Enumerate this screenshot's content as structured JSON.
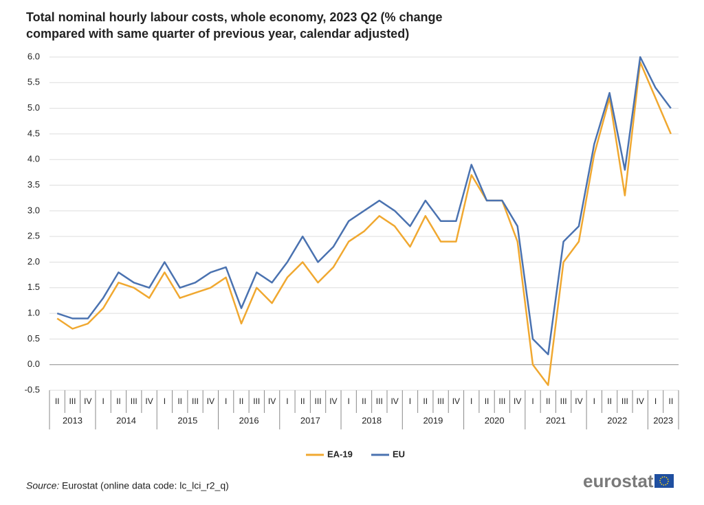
{
  "chart_data": {
    "type": "line",
    "title": "Total nominal hourly labour costs, whole economy, 2023 Q2 (% change compared with same quarter of previous year, calendar adjusted)",
    "categories": [
      [
        "2013",
        "II"
      ],
      [
        "2013",
        "III"
      ],
      [
        "2013",
        "IV"
      ],
      [
        "2014",
        "I"
      ],
      [
        "2014",
        "II"
      ],
      [
        "2014",
        "III"
      ],
      [
        "2014",
        "IV"
      ],
      [
        "2015",
        "I"
      ],
      [
        "2015",
        "II"
      ],
      [
        "2015",
        "III"
      ],
      [
        "2015",
        "IV"
      ],
      [
        "2016",
        "I"
      ],
      [
        "2016",
        "II"
      ],
      [
        "2016",
        "III"
      ],
      [
        "2016",
        "IV"
      ],
      [
        "2017",
        "I"
      ],
      [
        "2017",
        "II"
      ],
      [
        "2017",
        "III"
      ],
      [
        "2017",
        "IV"
      ],
      [
        "2018",
        "I"
      ],
      [
        "2018",
        "II"
      ],
      [
        "2018",
        "III"
      ],
      [
        "2018",
        "IV"
      ],
      [
        "2019",
        "I"
      ],
      [
        "2019",
        "II"
      ],
      [
        "2019",
        "III"
      ],
      [
        "2019",
        "IV"
      ],
      [
        "2020",
        "I"
      ],
      [
        "2020",
        "II"
      ],
      [
        "2020",
        "III"
      ],
      [
        "2020",
        "IV"
      ],
      [
        "2021",
        "I"
      ],
      [
        "2021",
        "II"
      ],
      [
        "2021",
        "III"
      ],
      [
        "2021",
        "IV"
      ],
      [
        "2022",
        "I"
      ],
      [
        "2022",
        "II"
      ],
      [
        "2022",
        "III"
      ],
      [
        "2022",
        "IV"
      ],
      [
        "2023",
        "I"
      ],
      [
        "2023",
        "II"
      ]
    ],
    "series": [
      {
        "name": "EA-19",
        "color": "#f0a830",
        "values": [
          0.9,
          0.7,
          0.8,
          1.1,
          1.6,
          1.5,
          1.3,
          1.8,
          1.3,
          1.4,
          1.5,
          1.7,
          0.8,
          1.5,
          1.2,
          1.7,
          2.0,
          1.6,
          1.9,
          2.4,
          2.6,
          2.9,
          2.7,
          2.3,
          2.9,
          2.4,
          2.4,
          3.7,
          3.2,
          3.2,
          2.4,
          0.0,
          -0.4,
          2.0,
          2.4,
          4.1,
          5.2,
          3.3,
          5.9,
          5.2,
          4.5
        ]
      },
      {
        "name": "EU",
        "color": "#4a72b0",
        "values": [
          1.0,
          0.9,
          0.9,
          1.3,
          1.8,
          1.6,
          1.5,
          2.0,
          1.5,
          1.6,
          1.8,
          1.9,
          1.1,
          1.8,
          1.6,
          2.0,
          2.5,
          2.0,
          2.3,
          2.8,
          3.0,
          3.2,
          3.0,
          2.7,
          3.2,
          2.8,
          2.8,
          3.9,
          3.2,
          3.2,
          2.7,
          0.5,
          0.2,
          2.4,
          2.7,
          4.3,
          5.3,
          3.8,
          6.0,
          5.4,
          5.0
        ]
      }
    ],
    "ylim": [
      -0.5,
      6.0
    ],
    "yticks": [
      -0.5,
      {
        "value": 0,
        "label": "0.0"
      },
      0.5,
      {
        "value": 1,
        "label": "1.0"
      },
      1.5,
      {
        "value": 2,
        "label": "2.0"
      },
      2.5,
      {
        "value": 3,
        "label": "3.0"
      },
      3.5,
      {
        "value": 4,
        "label": "4.0"
      },
      4.5,
      {
        "value": 5,
        "label": "5.0"
      },
      5.5,
      {
        "value": 6,
        "label": "6.0"
      }
    ],
    "grid": true,
    "legend": "bottom",
    "source_label": "Source:",
    "source_text": "Eurostat (online data code: lc_lci_r2_q)",
    "logo": "eurostat"
  }
}
